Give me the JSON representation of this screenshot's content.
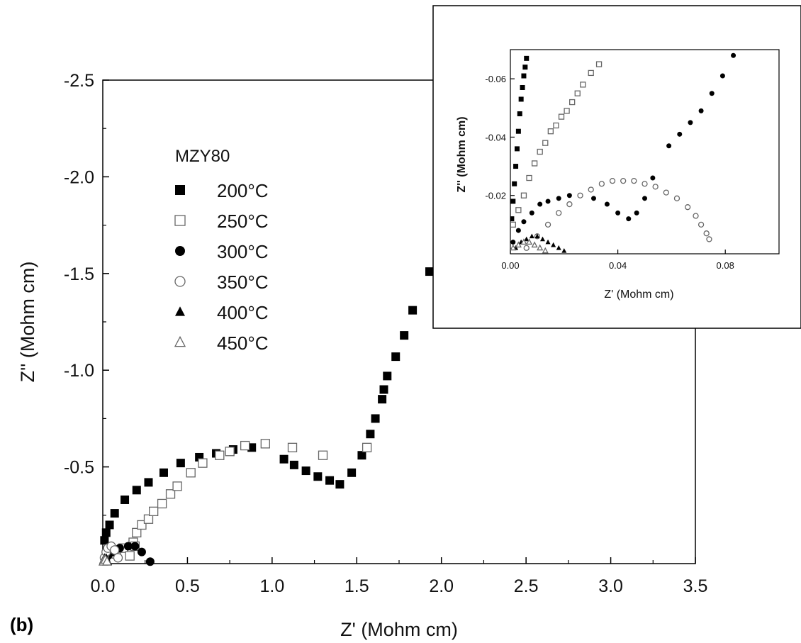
{
  "panel_label": "(b)",
  "chart_data": [
    {
      "id": "main",
      "type": "scatter",
      "xlabel": "Z' (Mohm cm)",
      "ylabel": "Z'' (Mohm cm)",
      "xlim": [
        0,
        3.5
      ],
      "ylim": [
        0,
        -2.5
      ],
      "xticks": [
        "0.0",
        "0.5",
        "1.0",
        "1.5",
        "2.0",
        "2.5",
        "3.0",
        "3.5"
      ],
      "yticks": [
        "-0.5",
        "-1.0",
        "-1.5",
        "-2.0",
        "-2.5"
      ],
      "grid": false,
      "legend": {
        "title": "MZY80",
        "placement": "top-left",
        "entries": [
          {
            "label": "200",
            "unit": "°C",
            "marker": "square-filled"
          },
          {
            "label": "250",
            "unit": "°C",
            "marker": "square-open"
          },
          {
            "label": "300",
            "unit": "°C",
            "marker": "circle-filled"
          },
          {
            "label": "350",
            "unit": "°C",
            "marker": "circle-open"
          },
          {
            "label": "400",
            "unit": "°C",
            "marker": "triangle-filled"
          },
          {
            "label": "450",
            "unit": "°C",
            "marker": "triangle-open"
          }
        ]
      },
      "series": [
        {
          "marker": "square-filled",
          "x": [
            0.01,
            0.02,
            0.04,
            0.07,
            0.13,
            0.2,
            0.27,
            0.36,
            0.46,
            0.57,
            0.67,
            0.77,
            0.88,
            1.07,
            1.13,
            1.2,
            1.27,
            1.34,
            1.4,
            1.47,
            1.53,
            1.58,
            1.61,
            1.65,
            1.66,
            1.68,
            1.73,
            1.78,
            1.83,
            1.93
          ],
          "y": [
            -0.12,
            -0.16,
            -0.2,
            -0.26,
            -0.33,
            -0.38,
            -0.42,
            -0.47,
            -0.52,
            -0.55,
            -0.57,
            -0.59,
            -0.6,
            -0.54,
            -0.51,
            -0.48,
            -0.45,
            -0.43,
            -0.41,
            -0.47,
            -0.56,
            -0.67,
            -0.75,
            -0.85,
            -0.9,
            -0.97,
            -1.07,
            -1.18,
            -1.31,
            -1.51
          ]
        },
        {
          "marker": "square-open",
          "x": [
            0.08,
            0.12,
            0.18,
            0.2,
            0.23,
            0.27,
            0.3,
            0.35,
            0.4,
            0.44,
            0.52,
            0.59,
            0.69,
            0.75,
            0.84,
            0.96,
            1.12,
            1.3,
            1.56,
            0.16,
            0.19
          ],
          "y": [
            -0.05,
            -0.08,
            -0.11,
            -0.16,
            -0.2,
            -0.23,
            -0.27,
            -0.31,
            -0.36,
            -0.4,
            -0.47,
            -0.52,
            -0.56,
            -0.58,
            -0.61,
            -0.62,
            -0.6,
            -0.56,
            -0.6,
            -0.04,
            -0.09
          ]
        },
        {
          "marker": "circle-filled",
          "x": [
            0.03,
            0.06,
            0.1,
            0.15,
            0.19,
            0.23,
            0.28
          ],
          "y": [
            -0.04,
            -0.06,
            -0.08,
            -0.09,
            -0.09,
            -0.06,
            -0.01
          ]
        },
        {
          "marker": "circle-open",
          "x": [
            0.01,
            0.02,
            0.03,
            0.05,
            0.07,
            0.09
          ],
          "y": [
            -0.03,
            -0.06,
            -0.08,
            -0.09,
            -0.07,
            -0.03
          ]
        },
        {
          "marker": "triangle-filled",
          "x": [
            0.005,
            0.01,
            0.02,
            0.03
          ],
          "y": [
            -0.02,
            -0.03,
            -0.03,
            -0.01
          ]
        },
        {
          "marker": "triangle-open",
          "x": [
            0.004,
            0.008,
            0.015,
            0.025
          ],
          "y": [
            -0.01,
            -0.02,
            -0.02,
            -0.01
          ]
        }
      ]
    },
    {
      "id": "inset",
      "type": "scatter",
      "xlabel": "Z' (Mohm cm)",
      "ylabel": "Z'' (Mohm cm)",
      "xlim": [
        0,
        0.1
      ],
      "ylim": [
        0,
        -0.07
      ],
      "xticks": [
        "0.00",
        "0.04",
        "0.08"
      ],
      "yticks": [
        "-0.02",
        "-0.04",
        "-0.06"
      ],
      "grid": false,
      "series": [
        {
          "marker": "square-filled",
          "x": [
            0.0005,
            0.001,
            0.0015,
            0.002,
            0.0025,
            0.003,
            0.0035,
            0.004,
            0.0045,
            0.005,
            0.0055,
            0.006
          ],
          "y": [
            -0.012,
            -0.018,
            -0.024,
            -0.03,
            -0.036,
            -0.042,
            -0.048,
            -0.053,
            -0.057,
            -0.061,
            -0.064,
            -0.067
          ]
        },
        {
          "marker": "square-open",
          "x": [
            0.001,
            0.003,
            0.005,
            0.007,
            0.009,
            0.011,
            0.013,
            0.015,
            0.017,
            0.019,
            0.021,
            0.023,
            0.025,
            0.027,
            0.03,
            0.033
          ],
          "y": [
            -0.01,
            -0.015,
            -0.02,
            -0.026,
            -0.031,
            -0.035,
            -0.038,
            -0.042,
            -0.044,
            -0.047,
            -0.049,
            -0.052,
            -0.055,
            -0.058,
            -0.062,
            -0.065
          ]
        },
        {
          "marker": "circle-filled",
          "x": [
            0.001,
            0.003,
            0.005,
            0.008,
            0.011,
            0.014,
            0.018,
            0.022,
            0.026,
            0.031,
            0.036,
            0.04,
            0.044,
            0.047,
            0.05,
            0.053,
            0.059,
            0.063,
            0.067,
            0.071,
            0.075,
            0.079,
            0.083
          ],
          "y": [
            -0.004,
            -0.008,
            -0.011,
            -0.014,
            -0.017,
            -0.018,
            -0.019,
            -0.02,
            -0.02,
            -0.019,
            -0.017,
            -0.014,
            -0.012,
            -0.014,
            -0.019,
            -0.026,
            -0.037,
            -0.041,
            -0.045,
            -0.049,
            -0.055,
            -0.061,
            -0.068
          ]
        },
        {
          "marker": "circle-open",
          "x": [
            0.006,
            0.01,
            0.014,
            0.018,
            0.022,
            0.026,
            0.03,
            0.034,
            0.038,
            0.042,
            0.046,
            0.05,
            0.054,
            0.058,
            0.062,
            0.066,
            0.069,
            0.071,
            0.073,
            0.074
          ],
          "y": [
            -0.002,
            -0.006,
            -0.01,
            -0.014,
            -0.017,
            -0.02,
            -0.022,
            -0.024,
            -0.025,
            -0.025,
            -0.025,
            -0.024,
            -0.023,
            -0.021,
            -0.019,
            -0.016,
            -0.013,
            -0.01,
            -0.007,
            -0.005
          ]
        },
        {
          "marker": "triangle-filled",
          "x": [
            0.002,
            0.004,
            0.006,
            0.008,
            0.01,
            0.012,
            0.014,
            0.016,
            0.018,
            0.02
          ],
          "y": [
            -0.002,
            -0.004,
            -0.005,
            -0.006,
            -0.006,
            -0.005,
            -0.004,
            -0.003,
            -0.002,
            -0.001
          ]
        },
        {
          "marker": "triangle-open",
          "x": [
            0.001,
            0.003,
            0.005,
            0.007,
            0.009,
            0.011,
            0.013
          ],
          "y": [
            -0.002,
            -0.003,
            -0.004,
            -0.004,
            -0.003,
            -0.002,
            -0.001
          ]
        }
      ]
    }
  ]
}
